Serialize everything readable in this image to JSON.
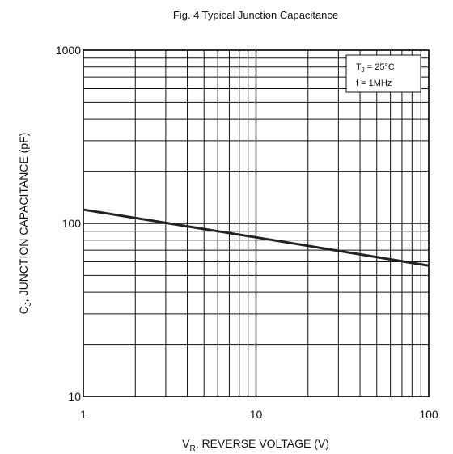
{
  "chart_data": {
    "type": "line",
    "title": "Fig. 4   Typical Junction Capacitance",
    "x_label": {
      "main": "V",
      "sub": "R",
      "rest": ", REVERSE VOLTAGE (V)"
    },
    "y_label": {
      "main": "C",
      "sub": "J",
      "rest": ", JUNCTION CAPACITANCE (pF)"
    },
    "annotations": [
      {
        "main": "T",
        "sub": "J",
        "rest": " = 25°C"
      },
      {
        "main": "f = 1MHz",
        "sub": "",
        "rest": ""
      }
    ],
    "x": [
      1,
      10,
      100
    ],
    "series": [
      {
        "name": "Cj",
        "color": "#222222",
        "values": [
          120,
          83,
          57
        ]
      }
    ],
    "x_log": true,
    "y_log": true,
    "xlim": [
      1,
      100
    ],
    "ylim": [
      10,
      1000
    ],
    "xticks": [
      1,
      10,
      100
    ],
    "yticks": [
      10,
      100,
      1000
    ],
    "x_minor_ticks": [
      2,
      3,
      4,
      5,
      6,
      7,
      8,
      9,
      20,
      30,
      40,
      50,
      60,
      70,
      80,
      90
    ],
    "y_minor_ticks": [
      20,
      30,
      40,
      50,
      60,
      70,
      80,
      90,
      200,
      300,
      400,
      500,
      600,
      700,
      800,
      900
    ],
    "grid": true
  }
}
